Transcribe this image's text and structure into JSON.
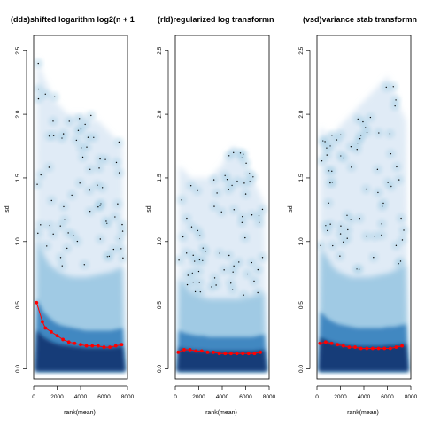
{
  "chart_data": [
    {
      "type": "scatter",
      "subtype": "meanSdPlot smoothed-density",
      "title": "(dds)shifted logarithm log2(n + 1",
      "xlabel": "rank(mean)",
      "ylabel": "sd",
      "xlim": [
        0,
        8000
      ],
      "ylim": [
        -0.08,
        2.62
      ],
      "x_ticks": [
        "0",
        "2000",
        "4000",
        "6000",
        "8000"
      ],
      "y_ticks": [
        "0.0",
        "0.5",
        "1.0",
        "1.5",
        "2.0",
        "2.5"
      ],
      "density_color": "#08306b",
      "running_median": {
        "color": "#ff0000",
        "x": [
          250,
          750,
          1000,
          1500,
          2000,
          2500,
          3000,
          3500,
          4000,
          4500,
          5000,
          5500,
          6000,
          6500,
          7000,
          7500
        ],
        "y": [
          0.52,
          0.37,
          0.32,
          0.29,
          0.26,
          0.23,
          0.21,
          0.2,
          0.19,
          0.18,
          0.18,
          0.18,
          0.17,
          0.17,
          0.18,
          0.19
        ]
      },
      "density": {
        "core_top": [
          0.55,
          0.45,
          0.4,
          0.36,
          0.34,
          0.33,
          0.32,
          0.31,
          0.3,
          0.3,
          0.3,
          0.3,
          0.3,
          0.31,
          0.32
        ],
        "mid_top": [
          1.05,
          0.9,
          0.82,
          0.78,
          0.75,
          0.73,
          0.72,
          0.72,
          0.72,
          0.73,
          0.74,
          0.75,
          0.76,
          0.78,
          0.8
        ],
        "outer_top": [
          2.45,
          2.3,
          2.2,
          2.1,
          2.05,
          2.0,
          2.0,
          2.0,
          2.0,
          1.95,
          1.95,
          1.9,
          1.85,
          1.8,
          1.75
        ]
      }
    },
    {
      "type": "scatter",
      "subtype": "meanSdPlot smoothed-density",
      "title": "(rld)regularized log transformn",
      "xlabel": "rank(mean)",
      "ylabel": "sd",
      "xlim": [
        0,
        8000
      ],
      "ylim": [
        -0.08,
        2.62
      ],
      "x_ticks": [
        "0",
        "2000",
        "4000",
        "6000",
        "8000"
      ],
      "y_ticks": [
        "0.0",
        "0.5",
        "1.0",
        "1.5",
        "2.0",
        "2.5"
      ],
      "density_color": "#08306b",
      "running_median": {
        "color": "#ff0000",
        "x": [
          250,
          750,
          1250,
          1750,
          2250,
          2750,
          3250,
          3750,
          4250,
          4750,
          5250,
          5750,
          6250,
          6750,
          7250
        ],
        "y": [
          0.13,
          0.15,
          0.15,
          0.14,
          0.14,
          0.13,
          0.13,
          0.12,
          0.12,
          0.12,
          0.12,
          0.12,
          0.12,
          0.12,
          0.13
        ]
      },
      "density": {
        "core_top": [
          0.3,
          0.28,
          0.27,
          0.26,
          0.26,
          0.25,
          0.25,
          0.25,
          0.25,
          0.25,
          0.25,
          0.25,
          0.25,
          0.26,
          0.27
        ],
        "mid_top": [
          0.72,
          0.65,
          0.6,
          0.58,
          0.56,
          0.55,
          0.55,
          0.55,
          0.55,
          0.55,
          0.55,
          0.56,
          0.57,
          0.58,
          0.6
        ],
        "outer_top": [
          1.6,
          1.55,
          1.5,
          1.5,
          1.5,
          1.5,
          1.55,
          1.6,
          1.7,
          1.75,
          1.7,
          1.6,
          1.5,
          1.4,
          1.3
        ]
      }
    },
    {
      "type": "scatter",
      "subtype": "meanSdPlot smoothed-density",
      "title": "(vsd)variance stab transformn",
      "xlabel": "rank(mean)",
      "ylabel": "sd",
      "xlim": [
        0,
        8000
      ],
      "ylim": [
        -0.08,
        2.62
      ],
      "x_ticks": [
        "0",
        "2000",
        "4000",
        "6000",
        "8000"
      ],
      "y_ticks": [
        "0.0",
        "0.5",
        "1.0",
        "1.5",
        "2.0",
        "2.5"
      ],
      "density_color": "#08306b",
      "running_median": {
        "color": "#ff0000",
        "x": [
          250,
          750,
          1250,
          1750,
          2250,
          2750,
          3250,
          3750,
          4250,
          4750,
          5250,
          5750,
          6250,
          6750,
          7250
        ],
        "y": [
          0.2,
          0.21,
          0.2,
          0.19,
          0.18,
          0.17,
          0.17,
          0.16,
          0.16,
          0.16,
          0.16,
          0.16,
          0.16,
          0.17,
          0.18
        ]
      },
      "density": {
        "core_top": [
          0.45,
          0.4,
          0.37,
          0.35,
          0.34,
          0.33,
          0.32,
          0.32,
          0.32,
          0.32,
          0.32,
          0.33,
          0.33,
          0.34,
          0.35
        ],
        "mid_top": [
          0.95,
          0.88,
          0.8,
          0.76,
          0.74,
          0.72,
          0.72,
          0.72,
          0.72,
          0.73,
          0.74,
          0.75,
          0.77,
          0.8,
          0.82
        ],
        "outer_top": [
          1.9,
          1.85,
          1.85,
          1.9,
          1.95,
          2.0,
          2.05,
          2.1,
          2.15,
          2.2,
          2.25,
          2.3,
          2.2,
          2.05,
          1.95
        ]
      }
    }
  ]
}
